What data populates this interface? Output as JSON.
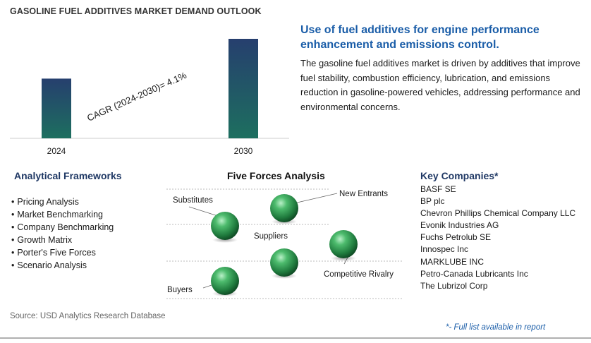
{
  "chart_data": {
    "type": "bar",
    "title": "GASOLINE FUEL ADDITIVES MARKET DEMAND OUTLOOK",
    "categories": [
      "2024",
      "2030"
    ],
    "values": [
      0.6,
      1.0
    ],
    "annotation": "CAGR (2024-2030)=    4.1%",
    "colors": [
      "#1d6f5f",
      "#263f6e"
    ]
  },
  "headline": "Use of fuel additives for engine performance enhancement and emissions control.",
  "summary": "The gasoline fuel additives market is driven by additives that improve fuel stability, combustion efficiency, lubrication, and emissions reduction in gasoline-powered vehicles, addressing performance and environmental concerns.",
  "frameworks": {
    "title": "Analytical Frameworks",
    "items": [
      "Pricing Analysis",
      "Market Benchmarking",
      "Company Benchmarking",
      "Growth Matrix",
      "Porter's Five Forces",
      "Scenario Analysis"
    ]
  },
  "five_forces": {
    "title": "Five Forces Analysis",
    "labels": {
      "substitutes": "Substitutes",
      "new_entrants": "New Entrants",
      "suppliers": "Suppliers",
      "competitive_rivalry": "Competitive Rivalry",
      "buyers": "Buyers"
    }
  },
  "key_companies": {
    "title": "Key Companies*",
    "items": [
      "BASF SE",
      "BP plc",
      "Chevron Phillips Chemical Company LLC",
      "Evonik Industries AG",
      "Fuchs Petrolub SE",
      "Innospec Inc",
      "MARKLUBE INC",
      "Petro-Canada Lubricants Inc",
      "The Lubrizol Corp"
    ]
  },
  "source": "Source: USD Analytics Research Database",
  "note": "*- Full list available in report"
}
